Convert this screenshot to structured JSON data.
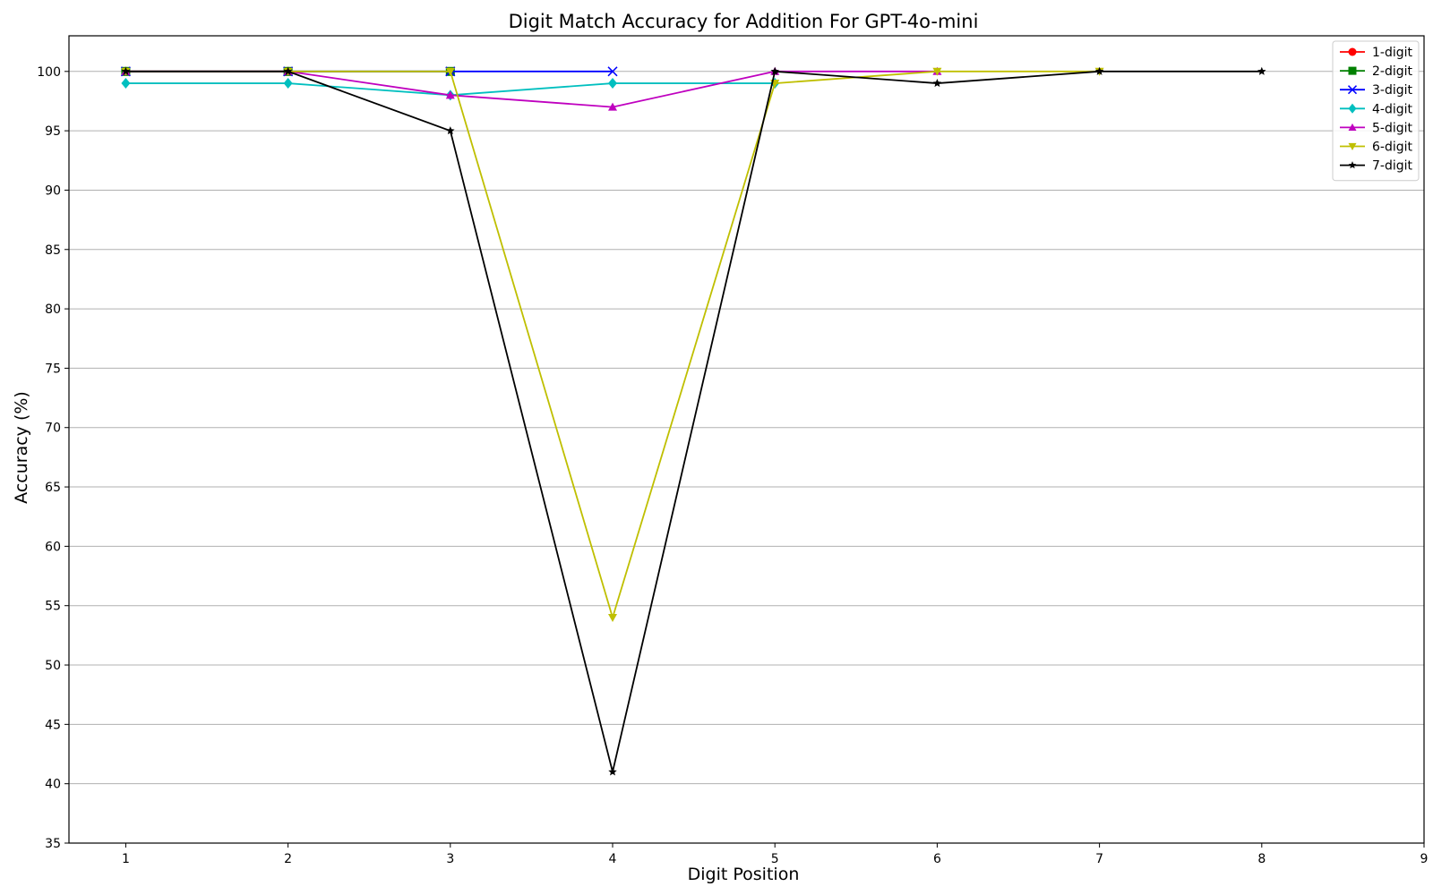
{
  "chart_data": {
    "type": "line",
    "title": "Digit Match Accuracy for Addition For GPT-4o-mini",
    "xlabel": "Digit Position",
    "ylabel": "Accuracy (%)",
    "xlim": [
      0.65,
      9
    ],
    "ylim": [
      35,
      103
    ],
    "xticks": [
      1,
      2,
      3,
      4,
      5,
      6,
      7,
      8,
      9
    ],
    "yticks": [
      35,
      40,
      45,
      50,
      55,
      60,
      65,
      70,
      75,
      80,
      85,
      90,
      95,
      100
    ],
    "grid": "horizontal",
    "legend_position": "top-right",
    "series": [
      {
        "name": "1-digit",
        "color": "#ff0000",
        "marker": "circle",
        "x": [
          1,
          2
        ],
        "values": [
          100,
          100
        ]
      },
      {
        "name": "2-digit",
        "color": "#008000",
        "marker": "square",
        "x": [
          1,
          2,
          3
        ],
        "values": [
          100,
          100,
          100
        ]
      },
      {
        "name": "3-digit",
        "color": "#0000ff",
        "marker": "x",
        "x": [
          1,
          2,
          3,
          4
        ],
        "values": [
          100,
          100,
          100,
          100
        ]
      },
      {
        "name": "4-digit",
        "color": "#00bfbf",
        "marker": "diamond",
        "x": [
          1,
          2,
          3,
          4,
          5
        ],
        "values": [
          99,
          99,
          98,
          99,
          99
        ]
      },
      {
        "name": "5-digit",
        "color": "#bf00bf",
        "marker": "triangle-up",
        "x": [
          1,
          2,
          3,
          4,
          5,
          6
        ],
        "values": [
          100,
          100,
          98,
          97,
          100,
          100
        ]
      },
      {
        "name": "6-digit",
        "color": "#bfbf00",
        "marker": "triangle-down",
        "x": [
          1,
          2,
          3,
          4,
          5,
          6,
          7
        ],
        "values": [
          100,
          100,
          100,
          54,
          99,
          100,
          100
        ]
      },
      {
        "name": "7-digit",
        "color": "#000000",
        "marker": "star",
        "x": [
          1,
          2,
          3,
          4,
          5,
          6,
          7,
          8
        ],
        "values": [
          100,
          100,
          95,
          41,
          100,
          99,
          100,
          100
        ]
      }
    ]
  }
}
